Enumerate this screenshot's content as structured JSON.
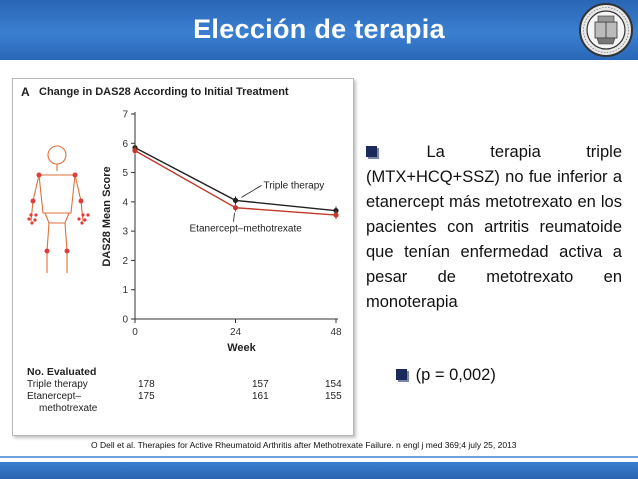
{
  "slide": {
    "title": "Elección de terapia"
  },
  "figure": {
    "panel_letter": "A",
    "panel_title": "Change in DAS28 According to Initial Treatment",
    "number_evaluated": {
      "title": "No. Evaluated",
      "rows": [
        {
          "name": "Triple therapy",
          "values": [
            "178",
            "157",
            "154"
          ]
        },
        {
          "name_lines": [
            "Etanercept–",
            "methotrexate"
          ],
          "values": [
            "175",
            "161",
            "155"
          ]
        }
      ]
    }
  },
  "chart_data": {
    "type": "line",
    "title": "Change in DAS28 According to Initial Treatment",
    "xlabel": "Week",
    "ylabel": "DAS28 Mean Score",
    "x": [
      0,
      24,
      48
    ],
    "xticks": [
      "0",
      "24",
      "48"
    ],
    "yticks": [
      "0",
      "1",
      "2",
      "3",
      "4",
      "5",
      "6",
      "7"
    ],
    "ylim": [
      0,
      7
    ],
    "series": [
      {
        "name": "Triple therapy",
        "values": [
          5.85,
          4.05,
          3.7
        ],
        "color": "#222222"
      },
      {
        "name": "Etanercept–methotrexate",
        "values": [
          5.75,
          3.8,
          3.55
        ],
        "color": "#c0392b"
      }
    ],
    "grid": false
  },
  "text": {
    "main_bullet": "La terapia triple (MTX+HCQ+SSZ) no fue inferior a etanercept más metotrexato en los pacientes con artritis reumatoide que tenían enfermedad activa a pesar de metotrexato en monoterapia",
    "p_value": "(p = 0,002)"
  },
  "citation": "O Dell et al. Therapies for Active Rheumatoid Arthritis after Methotrexate Failure. n engl j med 369;4 july 25, 2013",
  "colors": {
    "header_blue": "#2f6fbf",
    "bullet_color": "#1a2a5a",
    "triple_line": "#222222",
    "etanercept_line": "#c0392b"
  },
  "icons": [
    "square-bullet-icon",
    "university-seal-icon",
    "joint-skeleton-figure-icon"
  ]
}
